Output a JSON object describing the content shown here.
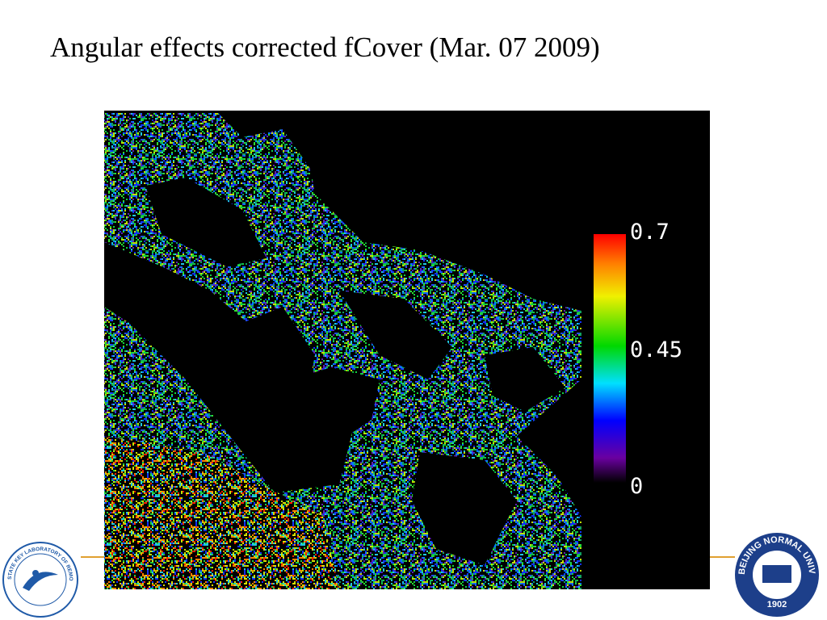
{
  "title": "Angular effects corrected fCover (Mar. 07 2009)",
  "colorbar": {
    "labels": [
      "0.7",
      "0.45",
      "0"
    ]
  },
  "logos": {
    "left": "STATE KEY LABORATORY OF REMOTE SENSING SCIENCE",
    "right": "BEIJING NORMAL UNIVERSITY",
    "right_year": "1902"
  }
}
